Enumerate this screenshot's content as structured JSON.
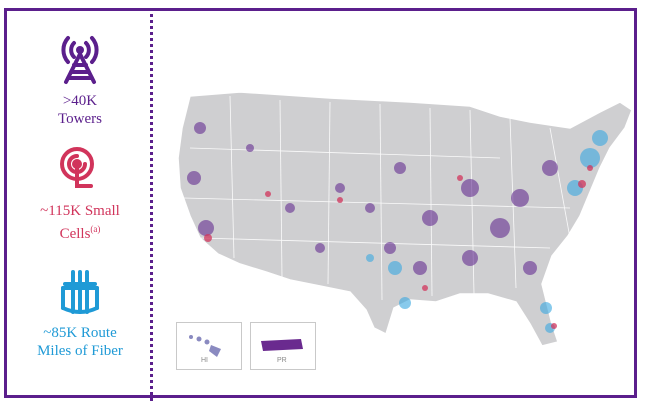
{
  "stats": [
    {
      "icon": "tower-icon",
      "label": ">40K\nTowers",
      "color": "#5b1f8c"
    },
    {
      "icon": "small-cell-icon",
      "label": "~115K Small\nCells",
      "superscript": "(a)",
      "color": "#d1345b"
    },
    {
      "icon": "fiber-icon",
      "label": "~85K Route\nMiles of Fiber",
      "color": "#1f9ad6"
    }
  ],
  "map": {
    "land_color": "#cfcfd1",
    "tower_color": "#5b1f8c",
    "small_cell_color": "#d1345b",
    "fiber_color": "#3aa8e0",
    "insets": [
      {
        "label": "HI"
      },
      {
        "label": "PR"
      }
    ]
  },
  "frame_color": "#5b1f8c"
}
